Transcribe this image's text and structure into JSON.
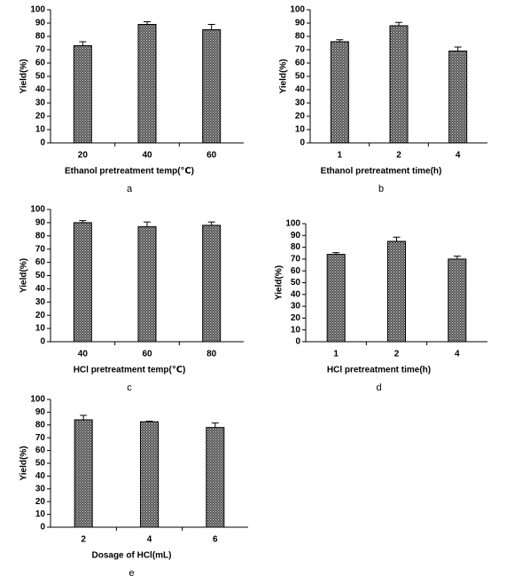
{
  "chart_data": [
    {
      "type": "bar",
      "caption": "a",
      "xlabel": "Ethanol pretreatment temp(℃)",
      "ylabel": "Yield(%)",
      "categories": [
        "20",
        "40",
        "60"
      ],
      "values": [
        73,
        89,
        85
      ],
      "errors": [
        3,
        2,
        4
      ],
      "ylim": [
        0,
        100
      ],
      "yticks": [
        0,
        10,
        20,
        30,
        40,
        50,
        60,
        70,
        80,
        90,
        100
      ]
    },
    {
      "type": "bar",
      "caption": "b",
      "xlabel": "Ethanol pretreatment time(h)",
      "ylabel": "Yield(%)",
      "categories": [
        "1",
        "2",
        "4"
      ],
      "values": [
        76,
        88,
        69
      ],
      "errors": [
        1.5,
        2.5,
        3
      ],
      "ylim": [
        0,
        100
      ],
      "yticks": [
        0,
        10,
        20,
        30,
        40,
        50,
        60,
        70,
        80,
        90,
        100
      ]
    },
    {
      "type": "bar",
      "caption": "c",
      "xlabel": "HCl pretreatment temp(℃)",
      "ylabel": "Yield(%)",
      "categories": [
        "40",
        "60",
        "80"
      ],
      "values": [
        90,
        87,
        88
      ],
      "errors": [
        1.5,
        3.5,
        2.5
      ],
      "ylim": [
        0,
        100
      ],
      "yticks": [
        0,
        10,
        20,
        30,
        40,
        50,
        60,
        70,
        80,
        90,
        100
      ]
    },
    {
      "type": "bar",
      "caption": "d",
      "xlabel": "HCl pretreatment time(h)",
      "ylabel": "Yield(%)",
      "categories": [
        "1",
        "2",
        "4"
      ],
      "values": [
        74,
        85,
        70
      ],
      "errors": [
        1.5,
        3.5,
        2.5
      ],
      "ylim": [
        0,
        100
      ],
      "yticks": [
        0,
        10,
        20,
        30,
        40,
        50,
        60,
        70,
        80,
        90,
        100
      ]
    },
    {
      "type": "bar",
      "caption": "e",
      "xlabel": "Dosage of HCl(mL)",
      "ylabel": "Yield(%)",
      "categories": [
        "2",
        "4",
        "6"
      ],
      "values": [
        84,
        82.5,
        78
      ],
      "errors": [
        3.5,
        0.5,
        3.5
      ],
      "ylim": [
        0,
        100
      ],
      "yticks": [
        0,
        10,
        20,
        30,
        40,
        50,
        60,
        70,
        80,
        90,
        100
      ]
    }
  ]
}
